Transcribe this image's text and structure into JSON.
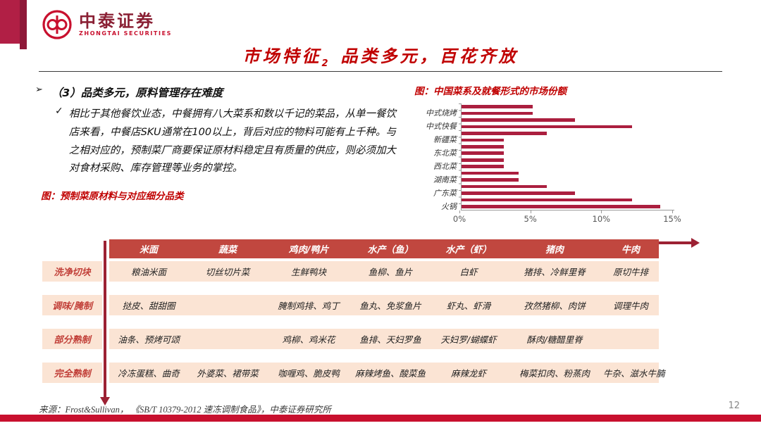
{
  "header": {
    "logo_cn": "中泰证券",
    "logo_en": "ZHONGTAI SECURITIES",
    "title_prefix": "市场特征",
    "title_sub": "2",
    "title_rest": "品类多元，百花齐放"
  },
  "left_panel": {
    "bullet_marker": "➢",
    "heading": "（3）品类多元，原料管理存在难度",
    "check_marker": "✓",
    "paragraph": "相比于其他餐饮业态，中餐拥有八大菜系和数以千记的菜品，从单一餐饮店来看，中餐店SKU通常在100以上，背后对应的物料可能有上千种。与之相对应的，预制菜厂商要保证原材料稳定且有质量的供应，则必须加大对食材采购、库存管理等业务的掌控。",
    "table_caption": "图：预制菜原材料与对应细分品类"
  },
  "chart_data": {
    "type": "bar",
    "orientation": "horizontal",
    "title": "图：中国菜系及就餐形式的市场份额",
    "categories": [
      "",
      "中式烧烤",
      "",
      "中式快餐",
      "",
      "新疆菜",
      "",
      "东北菜",
      "",
      "西北菜",
      "",
      "湖南菜",
      "",
      "广东菜",
      "",
      "火锅"
    ],
    "values": [
      5,
      5,
      8,
      12,
      6,
      3,
      3,
      3,
      3,
      3,
      4,
      4,
      6,
      8,
      12,
      14
    ],
    "unit": "%",
    "xlim": [
      0,
      15
    ],
    "x_ticks": [
      "0%",
      "5%",
      "10%",
      "15%"
    ],
    "bar_color": "#ab1f3f",
    "grid": false,
    "legend": false
  },
  "table": {
    "columns": [
      "米面",
      "蔬菜",
      "鸡肉/鸭片",
      "水产（鱼）",
      "水产（虾）",
      "猪肉",
      "牛肉"
    ],
    "rows": [
      {
        "label": "洗净切块",
        "cells": [
          "粮油米面",
          "切丝切片菜",
          "生鲜鸭块",
          "鱼柳、鱼片",
          "白虾",
          "猪排、冷鲜里脊",
          "原切牛排"
        ]
      },
      {
        "label": "调味/腌制",
        "cells": [
          "挞皮、甜甜圈",
          "",
          "腌制鸡排、鸡丁",
          "鱼丸、免浆鱼片",
          "虾丸、虾滑",
          "孜然猪柳、肉饼",
          "调理牛肉"
        ]
      },
      {
        "label": "部分熟制",
        "cells": [
          "油条、预烤可颂",
          "",
          "鸡柳、鸡米花",
          "鱼排、天妇罗鱼",
          "天妇罗/蝴蝶虾",
          "酥肉/糖醋里脊",
          ""
        ]
      },
      {
        "label": "完全熟制",
        "cells": [
          "冷冻蛋糕、曲奇",
          "外婆菜、裙带菜",
          "咖喱鸡、脆皮鸭",
          "麻辣烤鱼、酸菜鱼",
          "麻辣龙虾",
          "梅菜扣肉、粉蒸肉",
          "牛杂、滋水牛腩"
        ]
      }
    ]
  },
  "footer": {
    "source": "来源：Frost&Sullivan， 《SB/T 10379-2012 速冻调制食品》，中泰证券研究所",
    "page": "12"
  },
  "colors": {
    "accent_red": "#c00000",
    "bar_color": "#ab1f3f",
    "table_header_bg": "#c1473f",
    "table_row_bg": "#fbe4d4",
    "arrow": "#9c2133",
    "bottom_bar": "#c8102e"
  }
}
